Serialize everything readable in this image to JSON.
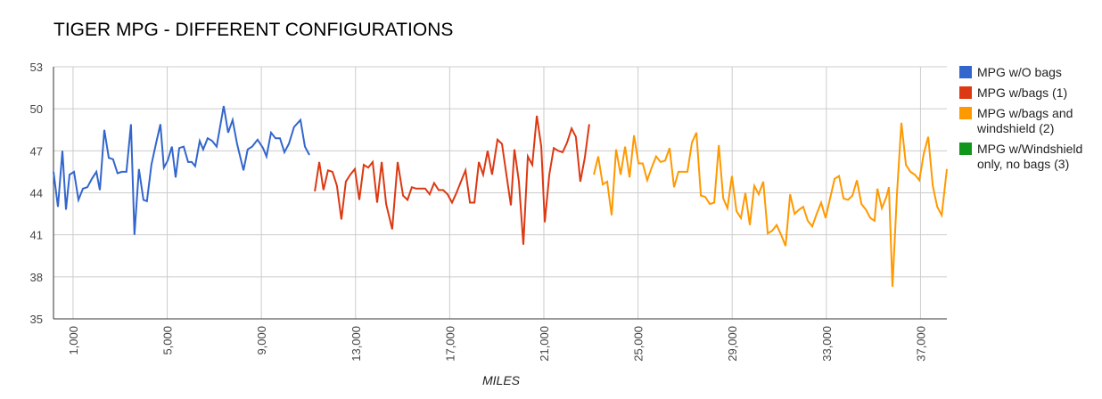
{
  "chart_data": {
    "type": "line",
    "title": "TIGER MPG - DIFFERENT CONFIGURATIONS",
    "x_label": "MILES",
    "xlim": [
      170,
      38120
    ],
    "ylim": [
      35,
      53
    ],
    "xticks": [
      {
        "value": 1000,
        "label": "1,000"
      },
      {
        "value": 5000,
        "label": "5,000"
      },
      {
        "value": 9000,
        "label": "9,000"
      },
      {
        "value": 13000,
        "label": "13,000"
      },
      {
        "value": 17000,
        "label": "17,000"
      },
      {
        "value": 21000,
        "label": "21,000"
      },
      {
        "value": 25000,
        "label": "25,000"
      },
      {
        "value": 29000,
        "label": "29,000"
      },
      {
        "value": 33000,
        "label": "33,000"
      },
      {
        "value": 37000,
        "label": "37,000"
      }
    ],
    "yticks": [
      35,
      38,
      41,
      44,
      47,
      50,
      53
    ],
    "grid": true,
    "legend": "right",
    "series": [
      {
        "name": "MPG w/O bags",
        "color": "#3366cc",
        "x": [
          170,
          360,
          550,
          700,
          850,
          1040,
          1230,
          1420,
          1610,
          1800,
          1990,
          2140,
          2330,
          2520,
          2700,
          2890,
          3080,
          3270,
          3460,
          3610,
          3800,
          3990,
          4140,
          4330,
          4520,
          4710,
          4860,
          5020,
          5200,
          5360,
          5510,
          5700,
          5890,
          6040,
          6190,
          6380,
          6530,
          6720,
          6910,
          7100,
          7400,
          7590,
          7780,
          7970,
          8240,
          8420,
          8610,
          8840,
          9070,
          9220,
          9410,
          9600,
          9790,
          9980,
          10170,
          10390,
          10660,
          10850,
          11040
        ],
        "values": [
          45.5,
          43,
          47,
          42.8,
          45.3,
          45.5,
          43.5,
          44.3,
          44.4,
          45,
          45.5,
          44.2,
          48.5,
          46.5,
          46.4,
          45.4,
          45.5,
          45.5,
          48.9,
          41,
          45.7,
          43.5,
          43.4,
          46,
          47.5,
          48.9,
          45.8,
          46.3,
          47.3,
          45.1,
          47.2,
          47.3,
          46.2,
          46.2,
          45.9,
          47.7,
          47.1,
          47.9,
          47.7,
          47.3,
          50.2,
          48.3,
          49.2,
          47.5,
          45.6,
          47.1,
          47.3,
          47.8,
          47.2,
          46.6,
          48.3,
          47.9,
          47.9,
          46.9,
          47.5,
          48.7,
          49.2,
          47.3,
          46.7
        ]
      },
      {
        "name": "MPG w/bags (1)",
        "color": "#dc3912",
        "x": [
          11270,
          11460,
          11640,
          11830,
          12020,
          12210,
          12400,
          12590,
          12780,
          12970,
          13160,
          13350,
          13540,
          13730,
          13920,
          14110,
          14300,
          14560,
          14790,
          15020,
          15210,
          15390,
          15580,
          15770,
          15960,
          16150,
          16340,
          16530,
          16720,
          16910,
          17100,
          17290,
          17480,
          17670,
          17860,
          18050,
          18240,
          18420,
          18610,
          18800,
          19030,
          19220,
          19410,
          19600,
          19750,
          19940,
          20130,
          20320,
          20510,
          20700,
          20890,
          21040,
          21230,
          21420,
          21610,
          21800,
          21990,
          22180,
          22360,
          22550,
          22740,
          22930
        ],
        "values": [
          44.1,
          46.2,
          44.2,
          45.6,
          45.5,
          44.5,
          42.1,
          44.8,
          45.3,
          45.7,
          43.5,
          46,
          45.8,
          46.2,
          43.3,
          46.2,
          43.2,
          41.4,
          46.2,
          43.8,
          43.5,
          44.4,
          44.3,
          44.3,
          44.3,
          43.9,
          44.7,
          44.2,
          44.2,
          43.9,
          43.3,
          44,
          44.8,
          45.6,
          43.3,
          43.3,
          46.2,
          45.3,
          47,
          45.3,
          47.8,
          47.5,
          45.3,
          43.1,
          47.1,
          44.8,
          40.3,
          46.6,
          46,
          49.5,
          47.3,
          41.9,
          45.3,
          47.2,
          47,
          46.9,
          47.6,
          48.6,
          48,
          44.8,
          46.5,
          48.9
        ]
      },
      {
        "name": "MPG w/bags and windshield (2)",
        "color": "#ff9900",
        "x": [
          23120,
          23310,
          23500,
          23690,
          23880,
          24070,
          24260,
          24450,
          24640,
          24830,
          25020,
          25200,
          25390,
          25580,
          25770,
          25960,
          26150,
          26340,
          26530,
          26720,
          26910,
          27100,
          27290,
          27480,
          27670,
          27860,
          28050,
          28240,
          28430,
          28620,
          28800,
          28990,
          29180,
          29370,
          29560,
          29750,
          29940,
          30130,
          30320,
          30510,
          30700,
          30890,
          31080,
          31270,
          31460,
          31650,
          31840,
          32020,
          32210,
          32400,
          32590,
          32780,
          32970,
          33160,
          33350,
          33540,
          33730,
          33920,
          34110,
          34300,
          34490,
          34680,
          34870,
          35050,
          35170,
          35360,
          35550,
          35660,
          35810,
          36000,
          36190,
          36380,
          36570,
          36760,
          36950,
          37140,
          37330,
          37520,
          37710,
          37900,
          38120
        ],
        "values": [
          45.3,
          46.6,
          44.6,
          44.8,
          42.4,
          47.1,
          45.3,
          47.3,
          45.1,
          48.1,
          46.1,
          46.1,
          44.9,
          45.8,
          46.6,
          46.2,
          46.3,
          47.2,
          44.4,
          45.5,
          45.5,
          45.5,
          47.6,
          48.3,
          43.8,
          43.7,
          43.2,
          43.3,
          47.4,
          43.6,
          42.9,
          45.2,
          42.7,
          42.2,
          44,
          41.7,
          44.5,
          43.9,
          44.8,
          41.1,
          41.3,
          41.7,
          41,
          40.2,
          43.9,
          42.5,
          42.8,
          43,
          42,
          41.6,
          42.5,
          43.3,
          42.2,
          43.6,
          45,
          45.2,
          43.6,
          43.5,
          43.8,
          44.9,
          43.2,
          42.8,
          42.2,
          42,
          44.3,
          42.9,
          43.7,
          44.4,
          37.3,
          43.9,
          49,
          46,
          45.5,
          45.3,
          44.9,
          46.8,
          48,
          44.5,
          43,
          42.4,
          45.7
        ]
      },
      {
        "name": "MPG w/Windshield only, no bags (3)",
        "color": "#109618",
        "x": [],
        "values": []
      }
    ]
  }
}
